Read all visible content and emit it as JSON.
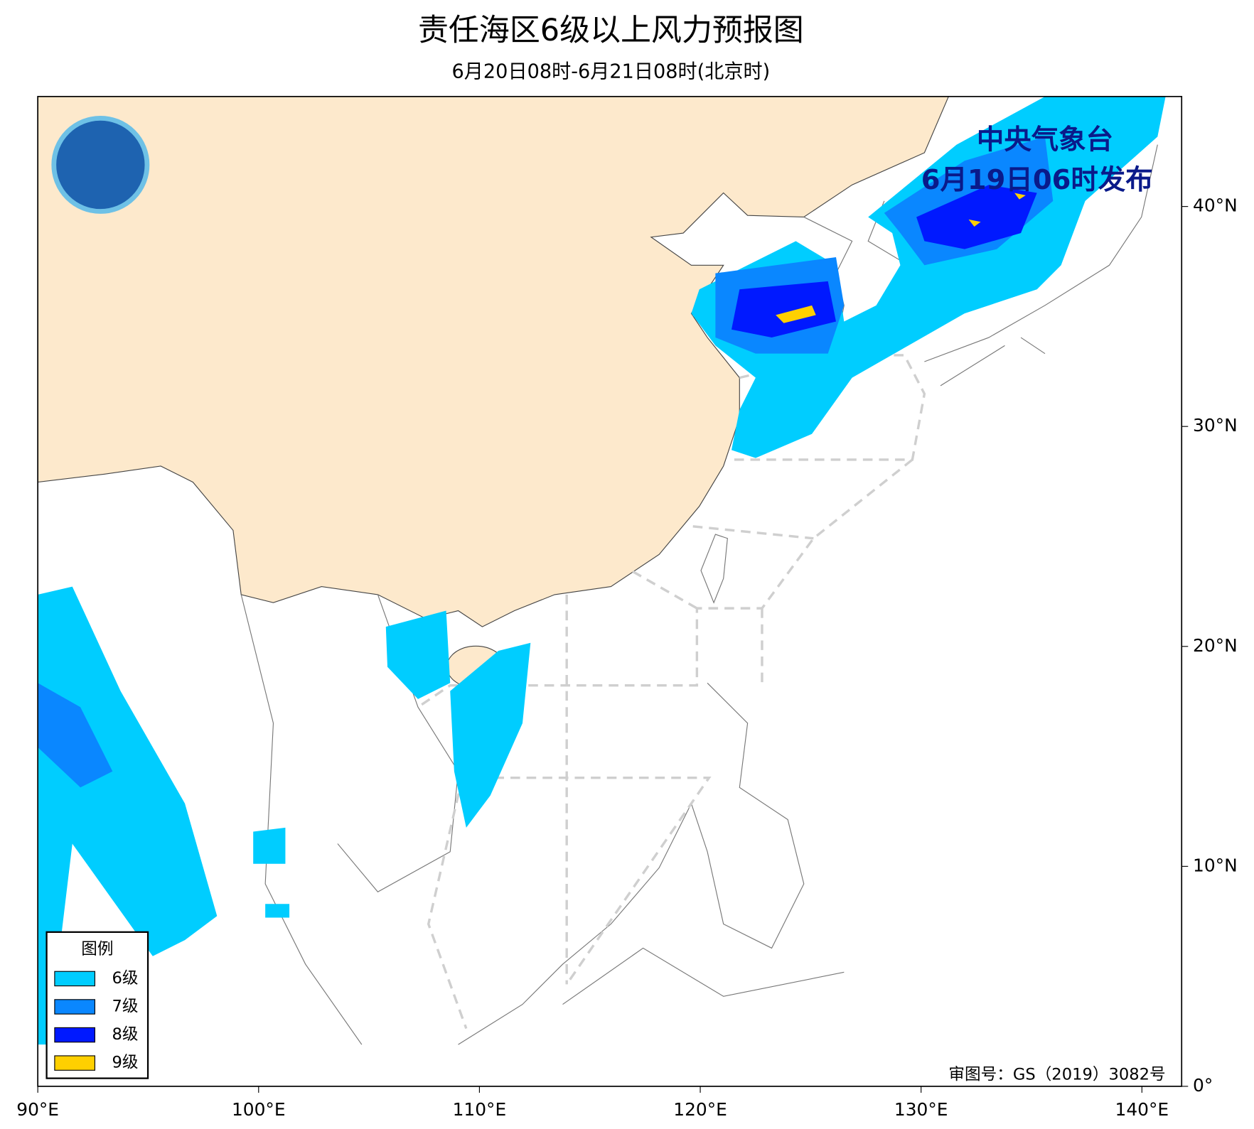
{
  "header": {
    "title": "责任海区6级以上风力预报图",
    "subtitle": "6月20日08时-6月21日08时(北京时)"
  },
  "issuer": {
    "name": "中央气象台",
    "time": "6月19日06时发布"
  },
  "legend": {
    "title": "图例",
    "items": [
      {
        "label": "6级",
        "color": "#00cdff"
      },
      {
        "label": "7级",
        "color": "#0a87ff"
      },
      {
        "label": "8级",
        "color": "#0019ff"
      },
      {
        "label": "9级",
        "color": "#ffd000"
      }
    ]
  },
  "map": {
    "xlim": [
      90,
      141.8
    ],
    "ylim": [
      0,
      45
    ],
    "xticks": [
      {
        "value": 90,
        "label": "90°E"
      },
      {
        "value": 100,
        "label": "100°E"
      },
      {
        "value": 110,
        "label": "110°E"
      },
      {
        "value": 120,
        "label": "120°E"
      },
      {
        "value": 130,
        "label": "130°E"
      },
      {
        "value": 140,
        "label": "140°E"
      }
    ],
    "yticks": [
      {
        "value": 0,
        "label": "0°"
      },
      {
        "value": 10,
        "label": "10°N"
      },
      {
        "value": 20,
        "label": "20°N"
      },
      {
        "value": 30,
        "label": "30°N"
      },
      {
        "value": 40,
        "label": "40°N"
      }
    ]
  },
  "approval": "审图号：GS（2019）3082号"
}
